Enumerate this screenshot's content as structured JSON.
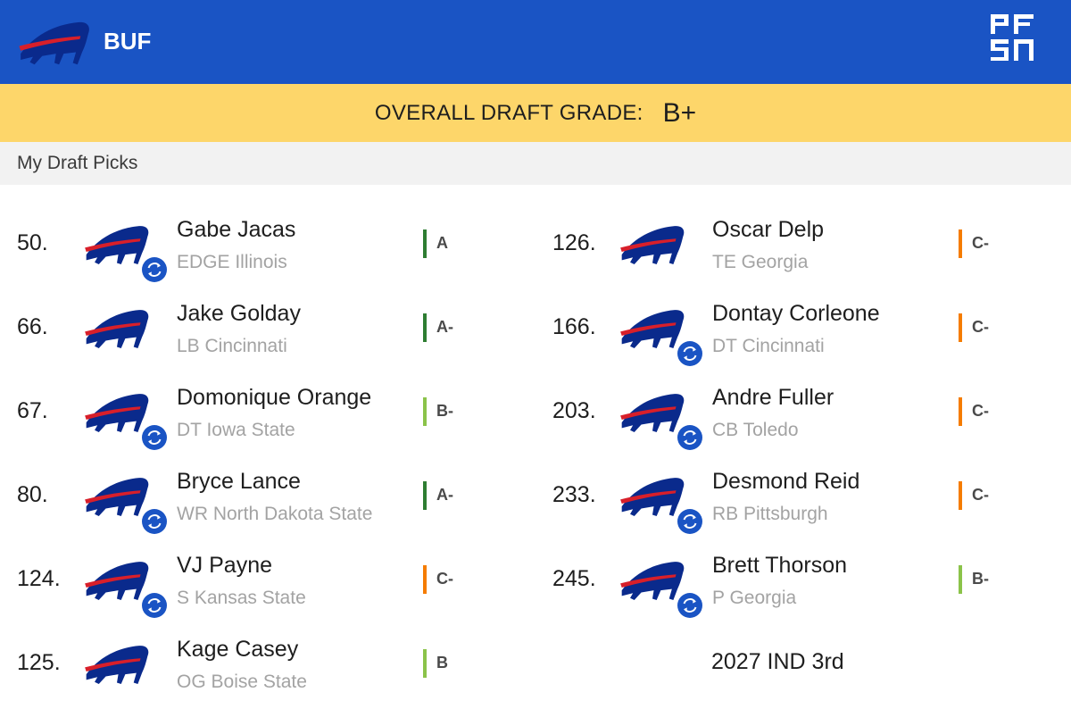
{
  "header": {
    "team_abbr": "BUF",
    "team_logo_icon": "bills-logo-icon",
    "brand_logo": "PFSN"
  },
  "grade_bar": {
    "label": "OVERALL DRAFT GRADE:",
    "value": "B+"
  },
  "section_title": "My Draft Picks",
  "colors": {
    "header_bg": "#1a54c4",
    "grade_bar_bg": "#fdd66a",
    "grade_A": "#2e7d32",
    "grade_B": "#8bc34a",
    "grade_C": "#f57c00",
    "trade_icon": "#1a54c4"
  },
  "picks": [
    {
      "number": "50.",
      "name": "Gabe Jacas",
      "info": "EDGE Illinois",
      "grade": "A",
      "traded": true
    },
    {
      "number": "66.",
      "name": "Jake Golday",
      "info": "LB Cincinnati",
      "grade": "A-",
      "traded": false
    },
    {
      "number": "67.",
      "name": "Domonique Orange",
      "info": "DT Iowa State",
      "grade": "B-",
      "traded": true
    },
    {
      "number": "80.",
      "name": "Bryce Lance",
      "info": "WR North Dakota State",
      "grade": "A-",
      "traded": true
    },
    {
      "number": "124.",
      "name": "VJ Payne",
      "info": "S Kansas State",
      "grade": "C-",
      "traded": true
    },
    {
      "number": "125.",
      "name": "Kage Casey",
      "info": "OG Boise State",
      "grade": "B",
      "traded": false
    },
    {
      "number": "126.",
      "name": "Oscar Delp",
      "info": "TE Georgia",
      "grade": "C-",
      "traded": false
    },
    {
      "number": "166.",
      "name": "Dontay Corleone",
      "info": "DT Cincinnati",
      "grade": "C-",
      "traded": true
    },
    {
      "number": "203.",
      "name": "Andre Fuller",
      "info": "CB Toledo",
      "grade": "C-",
      "traded": true
    },
    {
      "number": "233.",
      "name": "Desmond Reid",
      "info": "RB Pittsburgh",
      "grade": "C-",
      "traded": true
    },
    {
      "number": "245.",
      "name": "Brett Thorson",
      "info": "P Georgia",
      "grade": "B-",
      "traded": true
    }
  ],
  "future_pick": "2027 IND 3rd"
}
